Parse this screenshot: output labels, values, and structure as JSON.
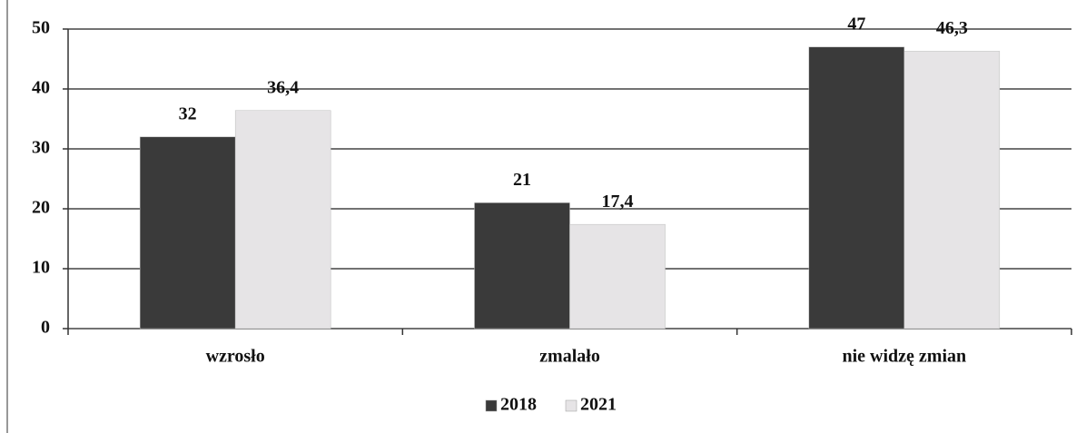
{
  "chart_data": {
    "type": "bar",
    "categories": [
      "wzrosło",
      "zmalało",
      "nie widzę zmian"
    ],
    "series": [
      {
        "name": "2018",
        "color": "#3a3a3a",
        "values": [
          32,
          21,
          47
        ]
      },
      {
        "name": "2021",
        "color": "#e6e4e6",
        "values": [
          36.4,
          17.4,
          46.3
        ],
        "value_labels": [
          "36,4",
          "17,4",
          "46,3"
        ]
      }
    ],
    "ylim": [
      0,
      50
    ],
    "yticks": [
      0,
      10,
      20,
      30,
      40,
      50
    ],
    "grid": true,
    "legend": "bottom"
  }
}
